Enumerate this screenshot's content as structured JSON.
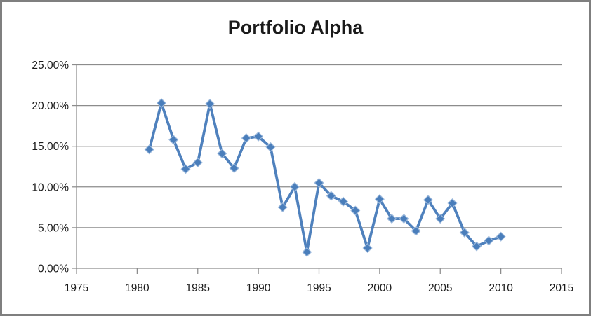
{
  "chart_data": {
    "type": "line",
    "title": "Portfolio Alpha",
    "legend": "none",
    "grid": "horizontal",
    "marker": "diamond",
    "value_unit": "percent",
    "xlim": [
      1975,
      2015
    ],
    "ylim": [
      0,
      25
    ],
    "x_tick_values": [
      1975,
      1980,
      1985,
      1990,
      1995,
      2000,
      2005,
      2010,
      2015
    ],
    "x_tick_labels": [
      "1975",
      "1980",
      "1985",
      "1990",
      "1995",
      "2000",
      "2005",
      "2010",
      "2015"
    ],
    "y_tick_values": [
      0,
      5,
      10,
      15,
      20,
      25
    ],
    "y_tick_labels": [
      "0.00%",
      "5.00%",
      "10.00%",
      "15.00%",
      "20.00%",
      "25.00%"
    ],
    "x": [
      1981,
      1982,
      1983,
      1984,
      1985,
      1986,
      1987,
      1988,
      1989,
      1990,
      1991,
      1992,
      1993,
      1994,
      1995,
      1996,
      1997,
      1998,
      1999,
      2000,
      2001,
      2002,
      2003,
      2004,
      2005,
      2006,
      2007,
      2008,
      2009,
      2010
    ],
    "values": [
      14.6,
      20.3,
      15.8,
      12.2,
      13.0,
      20.2,
      14.1,
      12.3,
      16.0,
      16.2,
      14.9,
      7.5,
      10.0,
      2.0,
      10.5,
      8.9,
      8.2,
      7.1,
      2.5,
      8.5,
      6.1,
      6.1,
      4.6,
      8.4,
      6.1,
      8.0,
      4.4,
      2.7,
      3.4,
      3.9
    ],
    "colors": {
      "line": "#4F81BD",
      "marker_fill": "#4A7EBB",
      "marker_edge": "#9CB9DC",
      "gridline": "#8C8C8C",
      "axis": "#8C8C8C",
      "tick_text": "#1A1A1A",
      "title_text": "#1A1A1A",
      "frame_border": "#7F7F7F",
      "background": "#FFFFFF"
    }
  }
}
